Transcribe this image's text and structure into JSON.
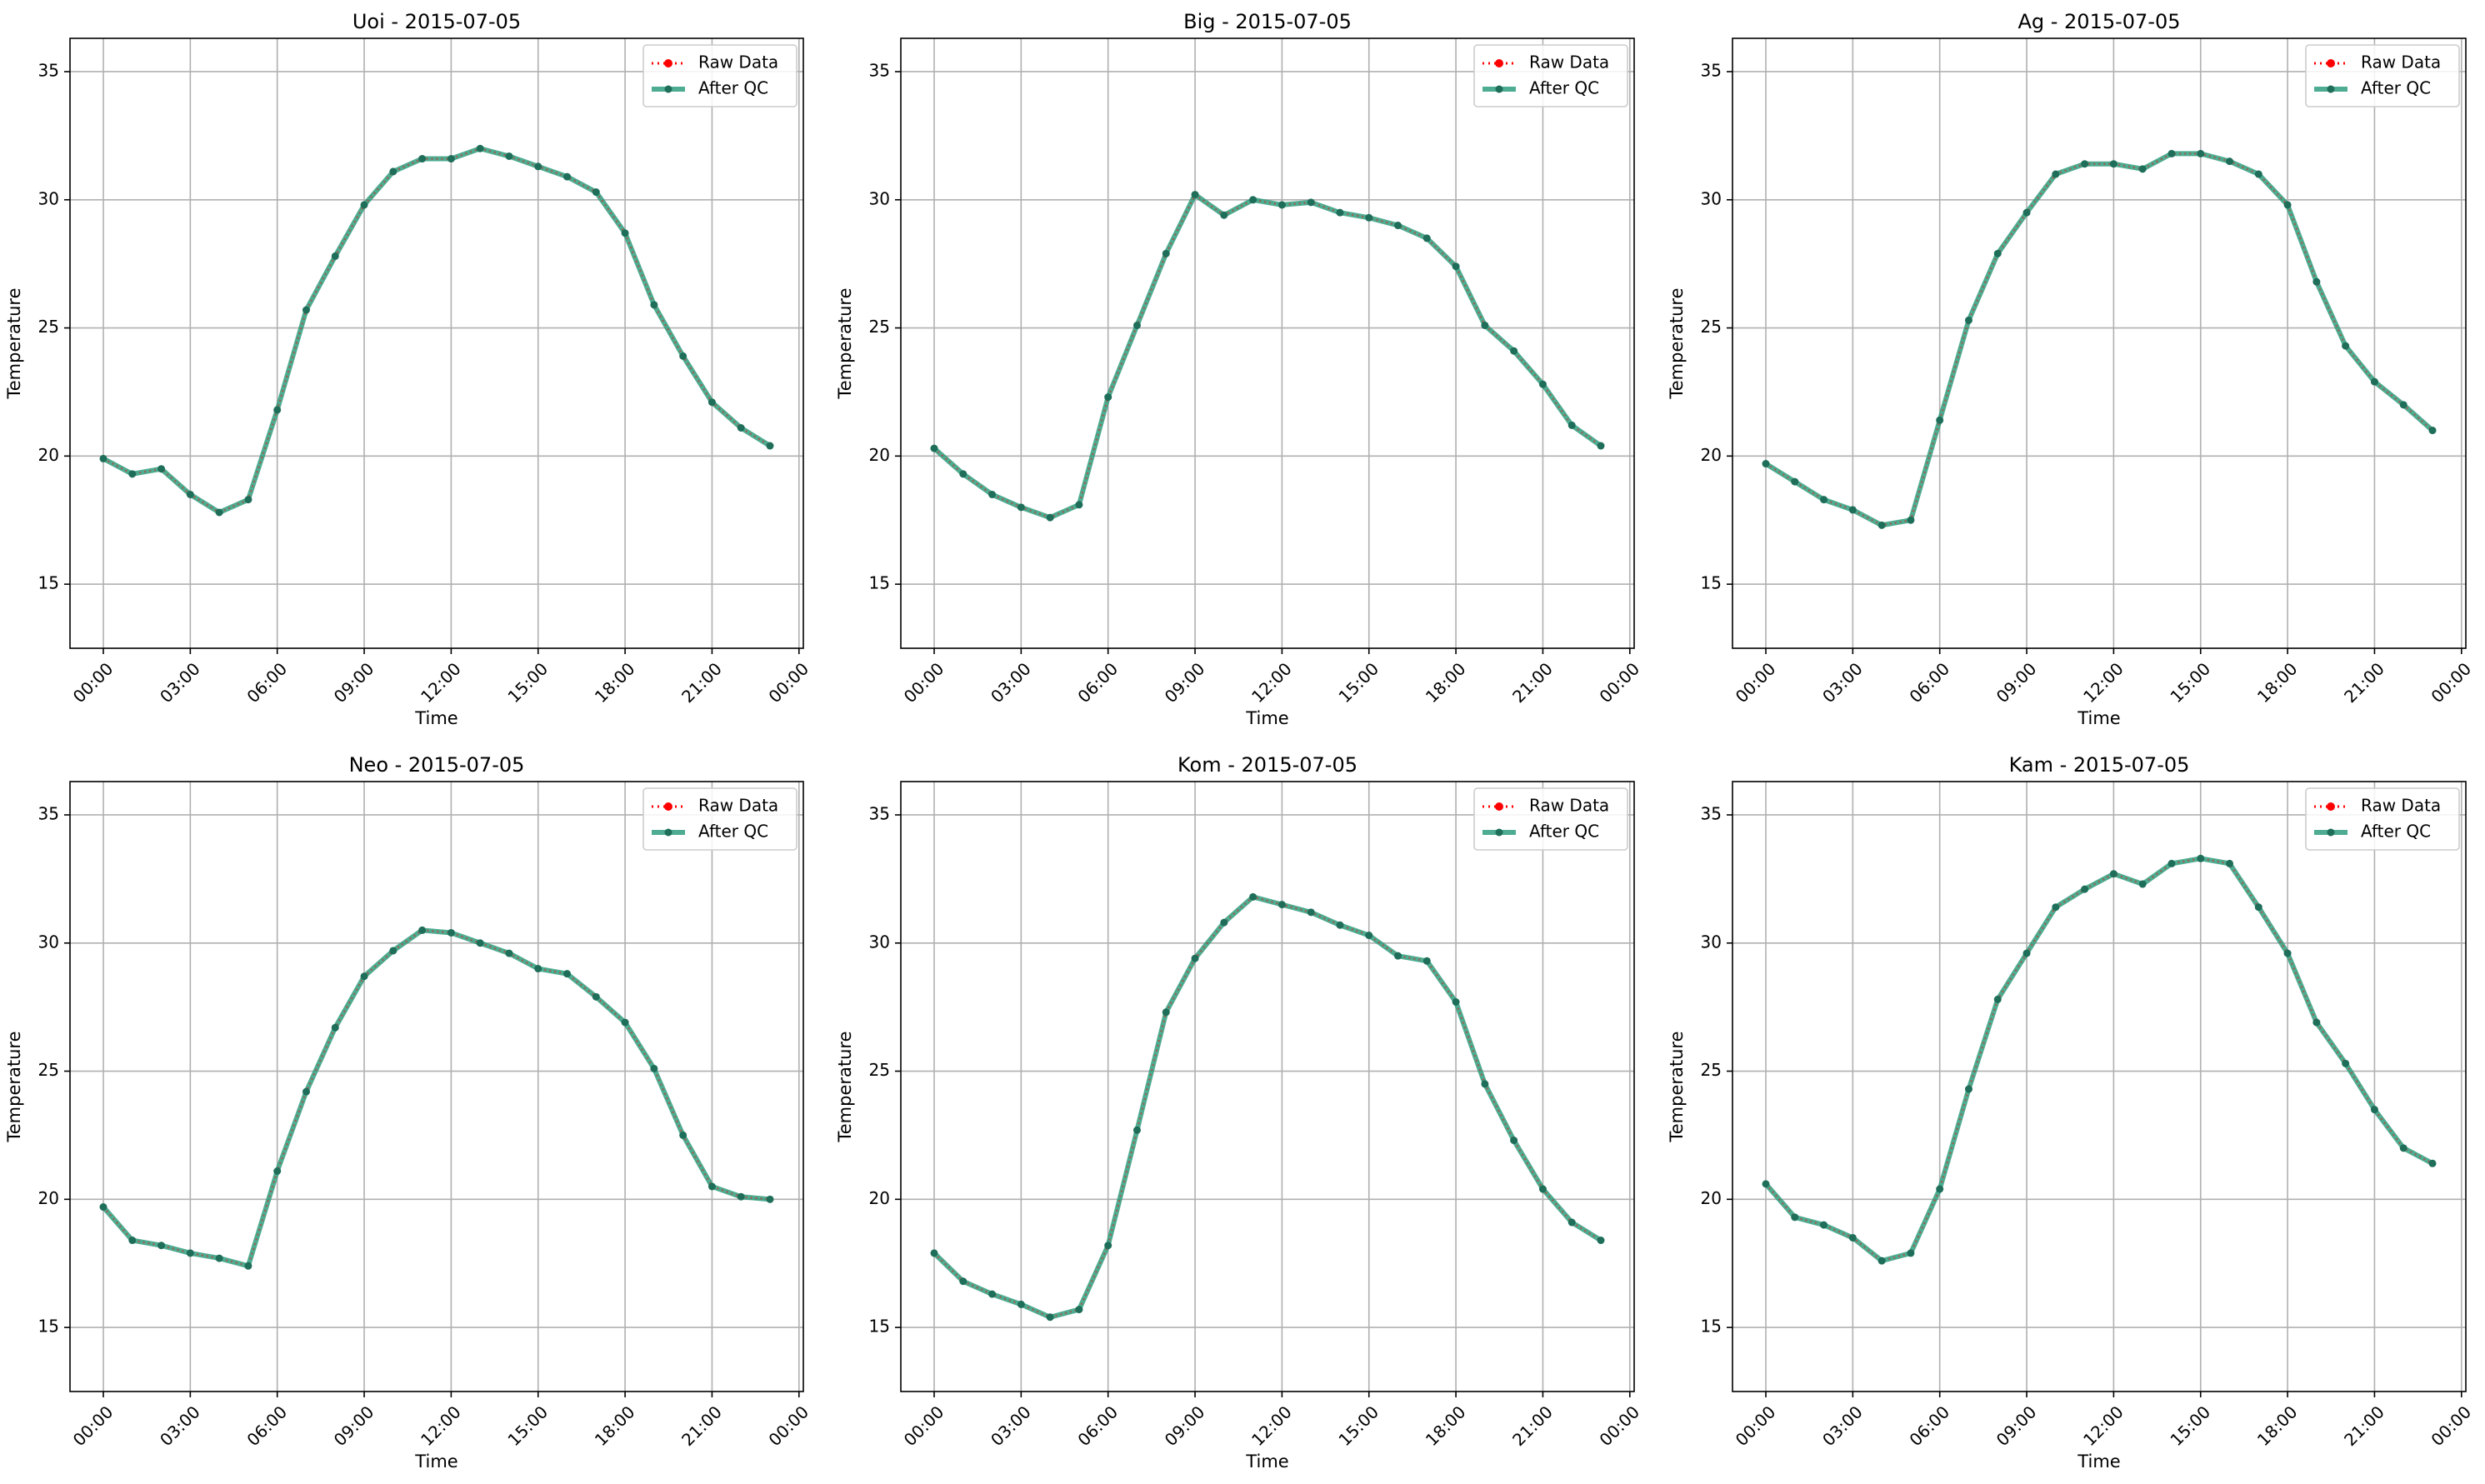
{
  "figure": {
    "grid": true,
    "legend_placement": "upper right",
    "colors": {
      "raw": "#ff0000",
      "qc": "#2e9e7e",
      "qc_marker": "#1f6e5a",
      "grid": "#b0b0b0",
      "axes": "#000000"
    }
  },
  "chart_data": [
    {
      "type": "line",
      "title": "Uoi - 2015-07-05",
      "xlabel": "Time",
      "ylabel": "Temperature",
      "xlim": [
        -1.15,
        24.15
      ],
      "ylim": [
        12.5,
        36.3
      ],
      "xticks": [
        0,
        3,
        6,
        9,
        12,
        15,
        18,
        21,
        24
      ],
      "xtick_labels": [
        "00:00",
        "03:00",
        "06:00",
        "09:00",
        "12:00",
        "15:00",
        "18:00",
        "21:00",
        "00:00"
      ],
      "yticks": [
        15,
        20,
        25,
        30,
        35
      ],
      "ytick_labels": [
        "15",
        "20",
        "25",
        "30",
        "35"
      ],
      "legend": [
        "Raw Data",
        "After QC"
      ],
      "x": [
        0,
        1,
        2,
        3,
        4,
        5,
        6,
        7,
        8,
        9,
        10,
        11,
        12,
        13,
        14,
        15,
        16,
        17,
        18,
        19,
        20,
        21,
        22,
        23
      ],
      "series": [
        {
          "name": "Raw Data",
          "style": "dotted",
          "values": [
            19.9,
            19.3,
            19.5,
            18.5,
            17.8,
            18.3,
            21.8,
            25.7,
            27.8,
            29.8,
            31.1,
            31.6,
            31.6,
            32.0,
            31.7,
            31.3,
            30.9,
            30.3,
            28.7,
            25.9,
            23.9,
            22.1,
            21.1,
            20.4
          ]
        },
        {
          "name": "After QC",
          "style": "solid",
          "values": [
            19.9,
            19.3,
            19.5,
            18.5,
            17.8,
            18.3,
            21.8,
            25.7,
            27.8,
            29.8,
            31.1,
            31.6,
            31.6,
            32.0,
            31.7,
            31.3,
            30.9,
            30.3,
            28.7,
            25.9,
            23.9,
            22.1,
            21.1,
            20.4
          ]
        }
      ]
    },
    {
      "type": "line",
      "title": "Big - 2015-07-05",
      "xlabel": "Time",
      "ylabel": "Temperature",
      "xlim": [
        -1.15,
        24.15
      ],
      "ylim": [
        12.5,
        36.3
      ],
      "xticks": [
        0,
        3,
        6,
        9,
        12,
        15,
        18,
        21,
        24
      ],
      "xtick_labels": [
        "00:00",
        "03:00",
        "06:00",
        "09:00",
        "12:00",
        "15:00",
        "18:00",
        "21:00",
        "00:00"
      ],
      "yticks": [
        15,
        20,
        25,
        30,
        35
      ],
      "ytick_labels": [
        "15",
        "20",
        "25",
        "30",
        "35"
      ],
      "legend": [
        "Raw Data",
        "After QC"
      ],
      "x": [
        0,
        1,
        2,
        3,
        4,
        5,
        6,
        7,
        8,
        9,
        10,
        11,
        12,
        13,
        14,
        15,
        16,
        17,
        18,
        19,
        20,
        21,
        22,
        23
      ],
      "series": [
        {
          "name": "Raw Data",
          "style": "dotted",
          "values": [
            20.3,
            19.3,
            18.5,
            18.0,
            17.6,
            18.1,
            22.3,
            25.1,
            27.9,
            30.2,
            29.4,
            30.0,
            29.8,
            29.9,
            29.5,
            29.3,
            29.0,
            28.5,
            27.4,
            25.1,
            24.1,
            22.8,
            21.2,
            20.4
          ]
        },
        {
          "name": "After QC",
          "style": "solid",
          "values": [
            20.3,
            19.3,
            18.5,
            18.0,
            17.6,
            18.1,
            22.3,
            25.1,
            27.9,
            30.2,
            29.4,
            30.0,
            29.8,
            29.9,
            29.5,
            29.3,
            29.0,
            28.5,
            27.4,
            25.1,
            24.1,
            22.8,
            21.2,
            20.4
          ]
        }
      ]
    },
    {
      "type": "line",
      "title": "Ag - 2015-07-05",
      "xlabel": "Time",
      "ylabel": "Temperature",
      "xlim": [
        -1.15,
        24.15
      ],
      "ylim": [
        12.5,
        36.3
      ],
      "xticks": [
        0,
        3,
        6,
        9,
        12,
        15,
        18,
        21,
        24
      ],
      "xtick_labels": [
        "00:00",
        "03:00",
        "06:00",
        "09:00",
        "12:00",
        "15:00",
        "18:00",
        "21:00",
        "00:00"
      ],
      "yticks": [
        15,
        20,
        25,
        30,
        35
      ],
      "ytick_labels": [
        "15",
        "20",
        "25",
        "30",
        "35"
      ],
      "legend": [
        "Raw Data",
        "After QC"
      ],
      "x": [
        0,
        1,
        2,
        3,
        4,
        5,
        6,
        7,
        8,
        9,
        10,
        11,
        12,
        13,
        14,
        15,
        16,
        17,
        18,
        19,
        20,
        21,
        22,
        23
      ],
      "series": [
        {
          "name": "Raw Data",
          "style": "dotted",
          "values": [
            19.7,
            19.0,
            18.3,
            17.9,
            17.3,
            17.5,
            21.4,
            25.3,
            27.9,
            29.5,
            31.0,
            31.4,
            31.4,
            31.2,
            31.8,
            31.8,
            31.5,
            31.0,
            29.8,
            26.8,
            24.3,
            22.9,
            22.0,
            21.0
          ]
        },
        {
          "name": "After QC",
          "style": "solid",
          "values": [
            19.7,
            19.0,
            18.3,
            17.9,
            17.3,
            17.5,
            21.4,
            25.3,
            27.9,
            29.5,
            31.0,
            31.4,
            31.4,
            31.2,
            31.8,
            31.8,
            31.5,
            31.0,
            29.8,
            26.8,
            24.3,
            22.9,
            22.0,
            21.0
          ]
        }
      ]
    },
    {
      "type": "line",
      "title": "Neo - 2015-07-05",
      "xlabel": "Time",
      "ylabel": "Temperature",
      "xlim": [
        -1.15,
        24.15
      ],
      "ylim": [
        12.5,
        36.3
      ],
      "xticks": [
        0,
        3,
        6,
        9,
        12,
        15,
        18,
        21,
        24
      ],
      "xtick_labels": [
        "00:00",
        "03:00",
        "06:00",
        "09:00",
        "12:00",
        "15:00",
        "18:00",
        "21:00",
        "00:00"
      ],
      "yticks": [
        15,
        20,
        25,
        30,
        35
      ],
      "ytick_labels": [
        "15",
        "20",
        "25",
        "30",
        "35"
      ],
      "legend": [
        "Raw Data",
        "After QC"
      ],
      "x": [
        0,
        1,
        2,
        3,
        4,
        5,
        6,
        7,
        8,
        9,
        10,
        11,
        12,
        13,
        14,
        15,
        16,
        17,
        18,
        19,
        20,
        21,
        22,
        23
      ],
      "series": [
        {
          "name": "Raw Data",
          "style": "dotted",
          "values": [
            19.7,
            18.4,
            18.2,
            17.9,
            17.7,
            17.4,
            21.1,
            24.2,
            26.7,
            28.7,
            29.7,
            30.5,
            30.4,
            30.0,
            29.6,
            29.0,
            28.8,
            27.9,
            26.9,
            25.1,
            22.5,
            20.5,
            20.1,
            20.0
          ]
        },
        {
          "name": "After QC",
          "style": "solid",
          "values": [
            19.7,
            18.4,
            18.2,
            17.9,
            17.7,
            17.4,
            21.1,
            24.2,
            26.7,
            28.7,
            29.7,
            30.5,
            30.4,
            30.0,
            29.6,
            29.0,
            28.8,
            27.9,
            26.9,
            25.1,
            22.5,
            20.5,
            20.1,
            20.0
          ]
        }
      ]
    },
    {
      "type": "line",
      "title": "Kom - 2015-07-05",
      "xlabel": "Time",
      "ylabel": "Temperature",
      "xlim": [
        -1.15,
        24.15
      ],
      "ylim": [
        12.5,
        36.3
      ],
      "xticks": [
        0,
        3,
        6,
        9,
        12,
        15,
        18,
        21,
        24
      ],
      "xtick_labels": [
        "00:00",
        "03:00",
        "06:00",
        "09:00",
        "12:00",
        "15:00",
        "18:00",
        "21:00",
        "00:00"
      ],
      "yticks": [
        15,
        20,
        25,
        30,
        35
      ],
      "ytick_labels": [
        "15",
        "20",
        "25",
        "30",
        "35"
      ],
      "legend": [
        "Raw Data",
        "After QC"
      ],
      "x": [
        0,
        1,
        2,
        3,
        4,
        5,
        6,
        7,
        8,
        9,
        10,
        11,
        12,
        13,
        14,
        15,
        16,
        17,
        18,
        19,
        20,
        21,
        22,
        23
      ],
      "series": [
        {
          "name": "Raw Data",
          "style": "dotted",
          "values": [
            17.9,
            16.8,
            16.3,
            15.9,
            15.4,
            15.7,
            18.2,
            22.7,
            27.3,
            29.4,
            30.8,
            31.8,
            31.5,
            31.2,
            30.7,
            30.3,
            29.5,
            29.3,
            27.7,
            24.5,
            22.3,
            20.4,
            19.1,
            18.4
          ]
        },
        {
          "name": "After QC",
          "style": "solid",
          "values": [
            17.9,
            16.8,
            16.3,
            15.9,
            15.4,
            15.7,
            18.2,
            22.7,
            27.3,
            29.4,
            30.8,
            31.8,
            31.5,
            31.2,
            30.7,
            30.3,
            29.5,
            29.3,
            27.7,
            24.5,
            22.3,
            20.4,
            19.1,
            18.4
          ]
        }
      ]
    },
    {
      "type": "line",
      "title": "Kam - 2015-07-05",
      "xlabel": "Time",
      "ylabel": "Temperature",
      "xlim": [
        -1.15,
        24.15
      ],
      "ylim": [
        12.5,
        36.3
      ],
      "xticks": [
        0,
        3,
        6,
        9,
        12,
        15,
        18,
        21,
        24
      ],
      "xtick_labels": [
        "00:00",
        "03:00",
        "06:00",
        "09:00",
        "12:00",
        "15:00",
        "18:00",
        "21:00",
        "00:00"
      ],
      "yticks": [
        15,
        20,
        25,
        30,
        35
      ],
      "ytick_labels": [
        "15",
        "20",
        "25",
        "30",
        "35"
      ],
      "legend": [
        "Raw Data",
        "After QC"
      ],
      "x": [
        0,
        1,
        2,
        3,
        4,
        5,
        6,
        7,
        8,
        9,
        10,
        11,
        12,
        13,
        14,
        15,
        16,
        17,
        18,
        19,
        20,
        21,
        22,
        23
      ],
      "series": [
        {
          "name": "Raw Data",
          "style": "dotted",
          "values": [
            20.6,
            19.3,
            19.0,
            18.5,
            17.6,
            17.9,
            20.4,
            24.3,
            27.8,
            29.6,
            31.4,
            32.1,
            32.7,
            32.3,
            33.1,
            33.3,
            33.1,
            31.4,
            29.6,
            26.9,
            25.3,
            23.5,
            22.0,
            21.4
          ]
        },
        {
          "name": "After QC",
          "style": "solid",
          "values": [
            20.6,
            19.3,
            19.0,
            18.5,
            17.6,
            17.9,
            20.4,
            24.3,
            27.8,
            29.6,
            31.4,
            32.1,
            32.7,
            32.3,
            33.1,
            33.3,
            33.1,
            31.4,
            29.6,
            26.9,
            25.3,
            23.5,
            22.0,
            21.4
          ]
        }
      ]
    }
  ]
}
